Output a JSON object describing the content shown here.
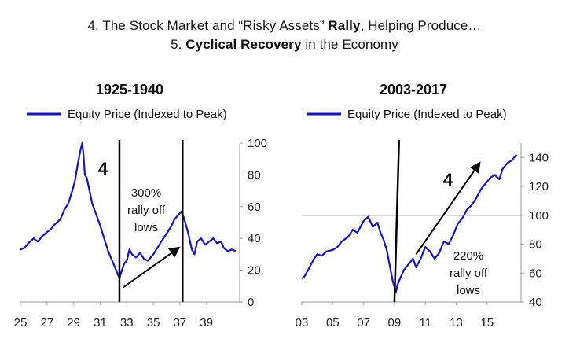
{
  "header": {
    "line1_pre": "4. The Stock Market and “Risky Assets” ",
    "line1_bold": "Rally",
    "line1_post": ", Helping Produce…",
    "line2_pre": "5. ",
    "line2_bold": "Cyclical Recovery",
    "line2_post": " in the Economy"
  },
  "colors": {
    "series": "#1414c8",
    "axis": "#999999",
    "annotation": "#000000"
  },
  "chart_data": [
    {
      "type": "line",
      "title": "1925-1940",
      "legend": "Equity Price (Indexed to Peak)",
      "legend_position": "top-left",
      "y_axis_side": "right",
      "ylim": [
        0,
        100
      ],
      "yticks": [
        0,
        20,
        40,
        60,
        80,
        100
      ],
      "xlim": [
        1925,
        1941.5
      ],
      "xticks": [
        1925,
        1927,
        1929,
        1931,
        1933,
        1935,
        1937,
        1939
      ],
      "xtick_labels": [
        "25",
        "27",
        "29",
        "31",
        "33",
        "35",
        "37",
        "39"
      ],
      "series": [
        {
          "x": [
            1925.0,
            1925.3,
            1925.6,
            1926.0,
            1926.3,
            1926.6,
            1927.0,
            1927.3,
            1927.6,
            1928.0,
            1928.3,
            1928.6,
            1928.9,
            1929.1,
            1929.3,
            1929.5,
            1929.65,
            1929.75,
            1929.85,
            1930.0,
            1930.2,
            1930.4,
            1930.7,
            1931.0,
            1931.3,
            1931.6,
            1931.9,
            1932.1,
            1932.3,
            1932.45,
            1932.6,
            1932.8,
            1933.0,
            1933.2,
            1933.4,
            1933.7,
            1934.0,
            1934.3,
            1934.6,
            1935.0,
            1935.3,
            1935.6,
            1936.0,
            1936.3,
            1936.6,
            1936.9,
            1937.1,
            1937.3,
            1937.6,
            1937.9,
            1938.1,
            1938.3,
            1938.6,
            1938.9,
            1939.2,
            1939.5,
            1939.8,
            1940.1,
            1940.3,
            1940.6,
            1940.9,
            1941.2
          ],
          "y": [
            33,
            34,
            37,
            40,
            38,
            41,
            44,
            46,
            49,
            52,
            58,
            62,
            70,
            76,
            86,
            95,
            100,
            92,
            80,
            78,
            70,
            62,
            55,
            48,
            40,
            32,
            26,
            22,
            18,
            15,
            19,
            24,
            26,
            33,
            30,
            28,
            31,
            27,
            26,
            30,
            34,
            38,
            43,
            47,
            52,
            55,
            57,
            53,
            44,
            33,
            30,
            38,
            40,
            36,
            38,
            40,
            37,
            38,
            34,
            32,
            33,
            32
          ]
        }
      ],
      "vertical_lines_x": [
        1932.45,
        1937.2
      ],
      "annotations": {
        "number": "4",
        "line1": "300%",
        "line2": "rally off",
        "line3": "lows",
        "arrow_from": [
          1932.7,
          9
        ],
        "arrow_to": [
          1936.9,
          34
        ]
      }
    },
    {
      "type": "line",
      "title": "2003-2017",
      "legend": "Equity Price (Indexed to Peak)",
      "legend_position": "top-left",
      "y_axis_side": "right",
      "ylim": [
        40,
        150
      ],
      "yticks": [
        40,
        60,
        80,
        100,
        120,
        140
      ],
      "reference_line_y": 100,
      "xlim": [
        2003,
        2017.2
      ],
      "xticks": [
        2003,
        2005,
        2007,
        2009,
        2011,
        2013,
        2015
      ],
      "xtick_labels": [
        "03",
        "05",
        "07",
        "09",
        "11",
        "13",
        "15"
      ],
      "series": [
        {
          "x": [
            2003.0,
            2003.2,
            2003.5,
            2003.8,
            2004.0,
            2004.3,
            2004.6,
            2005.0,
            2005.3,
            2005.6,
            2006.0,
            2006.3,
            2006.6,
            2007.0,
            2007.3,
            2007.6,
            2007.9,
            2008.1,
            2008.3,
            2008.5,
            2008.7,
            2008.9,
            2009.1,
            2009.2,
            2009.4,
            2009.6,
            2009.9,
            2010.2,
            2010.4,
            2010.7,
            2011.0,
            2011.3,
            2011.6,
            2011.9,
            2012.2,
            2012.5,
            2012.8,
            2013.1,
            2013.4,
            2013.7,
            2014.0,
            2014.3,
            2014.6,
            2014.9,
            2015.2,
            2015.5,
            2015.8,
            2016.0,
            2016.3,
            2016.6,
            2016.9
          ],
          "y": [
            56,
            58,
            64,
            70,
            73,
            72,
            75,
            76,
            78,
            82,
            85,
            90,
            88,
            96,
            99,
            92,
            95,
            88,
            83,
            76,
            65,
            54,
            47,
            52,
            57,
            62,
            66,
            70,
            64,
            70,
            78,
            75,
            70,
            74,
            82,
            80,
            86,
            94,
            98,
            104,
            107,
            112,
            118,
            122,
            126,
            128,
            125,
            132,
            136,
            138,
            142
          ]
        }
      ],
      "vertical_lines": [
        {
          "x1": 2009.0,
          "y1": 40,
          "x2": 2009.3,
          "y2": 150
        }
      ],
      "annotations": {
        "number": "4",
        "line1": "220%",
        "line2": "rally off",
        "line3": "lows",
        "arrow_from": [
          2010.4,
          73
        ],
        "arrow_to": [
          2014.5,
          136
        ]
      }
    }
  ]
}
